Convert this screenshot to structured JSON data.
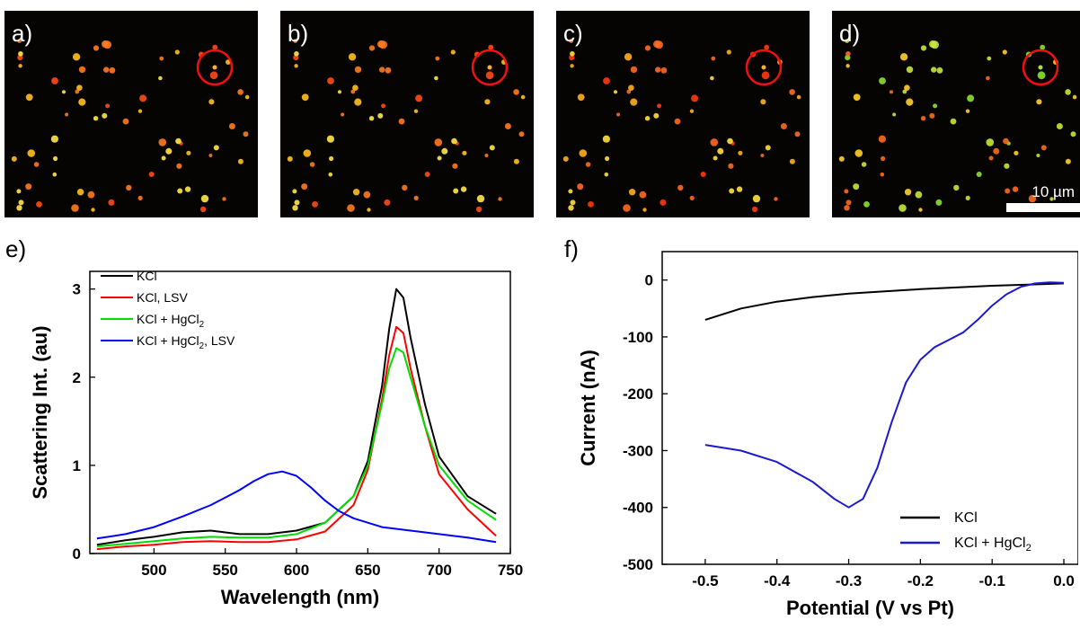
{
  "micrographs": {
    "letters": [
      "a)",
      "b)",
      "c)",
      "d)"
    ],
    "scalebar_label": "10 µm"
  },
  "chart_data": [
    {
      "panel": "e)",
      "type": "line",
      "xlabel": "Wavelength (nm)",
      "ylabel": "Scattering Int. (au)",
      "xlim": [
        455,
        750
      ],
      "ylim": [
        0,
        3.2
      ],
      "xticks": [
        450,
        500,
        550,
        600,
        650,
        700,
        750
      ],
      "yticks": [
        0,
        1,
        2,
        3
      ],
      "legend_position": "top-left",
      "series": [
        {
          "name": "KCl",
          "color": "#000000",
          "x": [
            460,
            480,
            500,
            520,
            540,
            560,
            580,
            600,
            620,
            640,
            650,
            660,
            665,
            670,
            675,
            680,
            690,
            700,
            720,
            740
          ],
          "y": [
            0.1,
            0.15,
            0.19,
            0.24,
            0.26,
            0.22,
            0.22,
            0.26,
            0.35,
            0.65,
            1.05,
            1.9,
            2.55,
            3.0,
            2.9,
            2.45,
            1.7,
            1.1,
            0.65,
            0.45
          ]
        },
        {
          "name": "KCl, LSV",
          "color": "#ff0000",
          "x": [
            460,
            480,
            500,
            520,
            540,
            560,
            580,
            600,
            620,
            640,
            650,
            660,
            665,
            670,
            675,
            680,
            690,
            700,
            720,
            740
          ],
          "y": [
            0.05,
            0.08,
            0.1,
            0.13,
            0.14,
            0.13,
            0.13,
            0.16,
            0.25,
            0.55,
            0.95,
            1.75,
            2.25,
            2.57,
            2.5,
            2.1,
            1.45,
            0.9,
            0.5,
            0.2
          ]
        },
        {
          "name": "KCl + HgCl",
          "sub": "2",
          "color": "#00dd00",
          "x": [
            460,
            480,
            500,
            520,
            540,
            560,
            580,
            600,
            620,
            640,
            650,
            660,
            665,
            670,
            675,
            680,
            690,
            700,
            720,
            740
          ],
          "y": [
            0.08,
            0.11,
            0.14,
            0.17,
            0.19,
            0.18,
            0.18,
            0.22,
            0.35,
            0.65,
            1.0,
            1.7,
            2.1,
            2.33,
            2.28,
            2.0,
            1.45,
            1.0,
            0.6,
            0.38
          ]
        },
        {
          "name": "KCl + HgCl",
          "sub": "2",
          "suffix": ", LSV",
          "color": "#0000ff",
          "x": [
            460,
            480,
            500,
            520,
            540,
            560,
            570,
            580,
            590,
            600,
            610,
            620,
            630,
            640,
            660,
            680,
            700,
            720,
            740
          ],
          "y": [
            0.17,
            0.22,
            0.3,
            0.42,
            0.55,
            0.72,
            0.82,
            0.9,
            0.93,
            0.88,
            0.75,
            0.6,
            0.48,
            0.4,
            0.3,
            0.26,
            0.22,
            0.18,
            0.13
          ]
        }
      ]
    },
    {
      "panel": "f)",
      "type": "line",
      "xlabel": "Potential (V vs Pt)",
      "ylabel": "Current (nA)",
      "xlim": [
        -0.56,
        0.02
      ],
      "ylim": [
        -500,
        50
      ],
      "xticks": [
        -0.5,
        -0.4,
        -0.3,
        -0.2,
        -0.1,
        0.0
      ],
      "xtick_labels": [
        "-0.5",
        "-0.4",
        "-0.3",
        "-0.2",
        "-0.1",
        "0.0"
      ],
      "yticks": [
        0,
        -100,
        -200,
        -300,
        -400,
        -500
      ],
      "legend_position": "bottom-right",
      "series": [
        {
          "name": "KCl",
          "color": "#000000",
          "x": [
            -0.5,
            -0.45,
            -0.4,
            -0.35,
            -0.3,
            -0.25,
            -0.2,
            -0.15,
            -0.1,
            -0.05,
            0.0
          ],
          "y": [
            -70,
            -50,
            -38,
            -30,
            -24,
            -20,
            -16,
            -13,
            -10,
            -8,
            -6
          ]
        },
        {
          "name": "KCl + HgCl",
          "sub": "2",
          "color": "#1a1acc",
          "x": [
            -0.5,
            -0.45,
            -0.4,
            -0.35,
            -0.32,
            -0.3,
            -0.28,
            -0.26,
            -0.24,
            -0.22,
            -0.2,
            -0.18,
            -0.16,
            -0.14,
            -0.12,
            -0.1,
            -0.08,
            -0.06,
            -0.04,
            -0.02,
            0.0
          ],
          "y": [
            -290,
            -300,
            -320,
            -355,
            -385,
            -400,
            -385,
            -330,
            -250,
            -180,
            -140,
            -118,
            -105,
            -92,
            -70,
            -45,
            -25,
            -12,
            -6,
            -4,
            -5
          ]
        }
      ]
    }
  ]
}
